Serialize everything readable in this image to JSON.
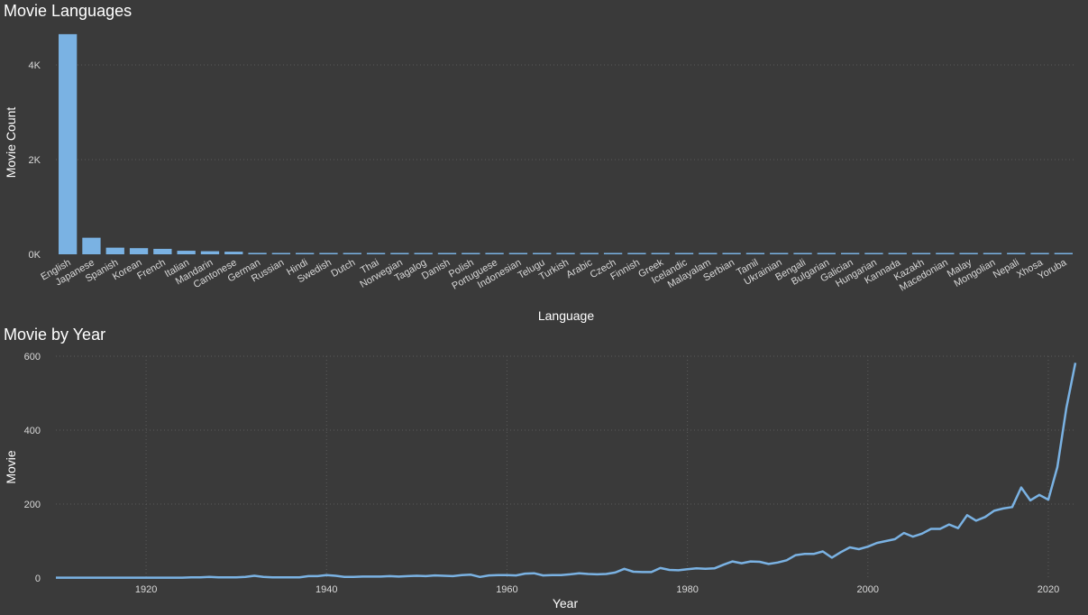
{
  "colors": {
    "background": "#3a3a3a",
    "bar": "#7ab2e3",
    "line": "#7ab2e3",
    "grid": "#5b5b5b",
    "text": "#ffffff",
    "tick_text": "#d9d9d9"
  },
  "chart_data": [
    {
      "type": "bar",
      "title": "Movie Languages",
      "xlabel": "Language",
      "ylabel": "Movie Count",
      "ylim": [
        0,
        4800
      ],
      "yticks": [
        0,
        2000,
        4000
      ],
      "ytick_labels": [
        "0K",
        "2K",
        "4K"
      ],
      "grid": "horizontal dotted",
      "categories": [
        "English",
        "Japanese",
        "Spanish",
        "Korean",
        "French",
        "Italian",
        "Mandarin",
        "Cantonese",
        "German",
        "Russian",
        "Hindi",
        "Swedish",
        "Dutch",
        "Thai",
        "Norwegian",
        "Tagalog",
        "Danish",
        "Polish",
        "Portuguese",
        "Indonesian",
        "Telugu",
        "Turkish",
        "Arabic",
        "Czech",
        "Finnish",
        "Greek",
        "Icelandic",
        "Malayalam",
        "Serbian",
        "Tamil",
        "Ukrainian",
        "Bengali",
        "Bulgarian",
        "Galician",
        "Hungarian",
        "Kannada",
        "Kazakh",
        "Macedonian",
        "Malay",
        "Mongolian",
        "Nepali",
        "Xhosa",
        "Yoruba"
      ],
      "values": [
        4650,
        350,
        140,
        130,
        115,
        75,
        65,
        55,
        30,
        20,
        12,
        10,
        9,
        8,
        7,
        6,
        6,
        5,
        5,
        4,
        4,
        4,
        3,
        3,
        3,
        3,
        2,
        2,
        2,
        2,
        2,
        1,
        1,
        1,
        1,
        1,
        1,
        1,
        1,
        1,
        1,
        1,
        1
      ]
    },
    {
      "type": "line",
      "title": "Movie by Year",
      "xlabel": "Year",
      "ylabel": "Movie",
      "xlim": [
        1910,
        2023
      ],
      "ylim": [
        0,
        600
      ],
      "xticks": [
        1920,
        1940,
        1960,
        1980,
        2000,
        2020
      ],
      "yticks": [
        0,
        200,
        400,
        600
      ],
      "grid": "dotted",
      "series": [
        {
          "x": [
            1910,
            1911,
            1912,
            1913,
            1914,
            1915,
            1916,
            1917,
            1918,
            1919,
            1920,
            1921,
            1922,
            1923,
            1924,
            1925,
            1926,
            1927,
            1928,
            1929,
            1930,
            1931,
            1932,
            1933,
            1934,
            1935,
            1936,
            1937,
            1938,
            1939,
            1940,
            1941,
            1942,
            1943,
            1944,
            1945,
            1946,
            1947,
            1948,
            1949,
            1950,
            1951,
            1952,
            1953,
            1954,
            1955,
            1956,
            1957,
            1958,
            1959,
            1960,
            1961,
            1962,
            1963,
            1964,
            1965,
            1966,
            1967,
            1968,
            1969,
            1970,
            1971,
            1972,
            1973,
            1974,
            1975,
            1976,
            1977,
            1978,
            1979,
            1980,
            1981,
            1982,
            1983,
            1984,
            1985,
            1986,
            1987,
            1988,
            1989,
            1990,
            1991,
            1992,
            1993,
            1994,
            1995,
            1996,
            1997,
            1998,
            1999,
            2000,
            2001,
            2002,
            2003,
            2004,
            2005,
            2006,
            2007,
            2008,
            2009,
            2010,
            2011,
            2012,
            2013,
            2014,
            2015,
            2016,
            2017,
            2018,
            2019,
            2020,
            2021,
            2022,
            2023
          ],
          "y": [
            1,
            1,
            1,
            1,
            1,
            1,
            1,
            1,
            1,
            1,
            1,
            1,
            1,
            1,
            1,
            2,
            2,
            3,
            2,
            2,
            2,
            3,
            6,
            3,
            2,
            2,
            2,
            2,
            5,
            5,
            8,
            6,
            3,
            3,
            4,
            4,
            4,
            5,
            4,
            5,
            6,
            5,
            7,
            6,
            5,
            8,
            9,
            3,
            7,
            8,
            8,
            7,
            12,
            13,
            7,
            8,
            8,
            10,
            13,
            11,
            10,
            11,
            15,
            25,
            17,
            16,
            16,
            27,
            22,
            21,
            24,
            26,
            25,
            26,
            36,
            45,
            40,
            45,
            44,
            38,
            42,
            48,
            62,
            65,
            65,
            72,
            55,
            70,
            83,
            78,
            85,
            95,
            100,
            105,
            122,
            112,
            120,
            133,
            133,
            145,
            135,
            170,
            155,
            165,
            182,
            188,
            192,
            245,
            210,
            225,
            212,
            300,
            460,
            582
          ]
        }
      ]
    }
  ]
}
